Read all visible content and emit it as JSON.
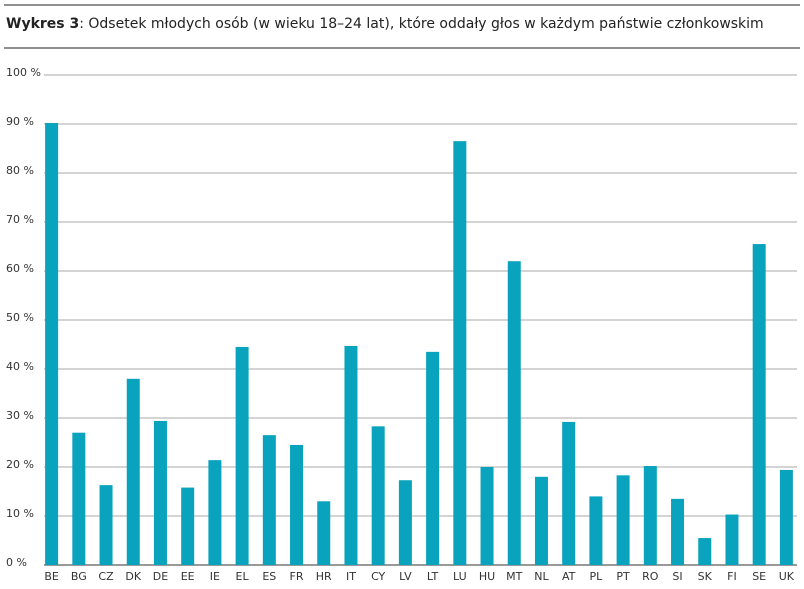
{
  "chart_data": {
    "type": "bar",
    "title_label": "Wykres 3",
    "title": ": Odsetek młodych osób (w wieku 18–24 lat), które oddały głos w każdym państwie członkowskim",
    "categories": [
      "BE",
      "BG",
      "CZ",
      "DK",
      "DE",
      "EE",
      "IE",
      "EL",
      "ES",
      "FR",
      "HR",
      "IT",
      "CY",
      "LV",
      "LT",
      "LU",
      "HU",
      "MT",
      "NL",
      "AT",
      "PL",
      "PT",
      "RO",
      "SI",
      "SK",
      "FI",
      "SE",
      "UK"
    ],
    "values": [
      90.2,
      27,
      16.3,
      38,
      29.4,
      15.8,
      21.4,
      44.5,
      26.5,
      24.5,
      13,
      44.7,
      28.3,
      17.3,
      43.5,
      86.5,
      20,
      62,
      18,
      29.2,
      14,
      18.3,
      20.2,
      13.5,
      5.5,
      10.3,
      65.5,
      19.4
    ],
    "color": "#0aa3bd",
    "ylim": [
      0,
      100
    ],
    "yticks": [
      {
        "value": 0,
        "label": "0 %"
      },
      {
        "value": 10,
        "label": "10 %"
      },
      {
        "value": 20,
        "label": "20 %"
      },
      {
        "value": 30,
        "label": "30 %"
      },
      {
        "value": 40,
        "label": "40 %"
      },
      {
        "value": 50,
        "label": "50 %"
      },
      {
        "value": 60,
        "label": "60 %"
      },
      {
        "value": 70,
        "label": "70 %"
      },
      {
        "value": 80,
        "label": "80 %"
      },
      {
        "value": 90,
        "label": "90 %"
      },
      {
        "value": 100,
        "label": "100 %"
      }
    ],
    "grid": true
  }
}
